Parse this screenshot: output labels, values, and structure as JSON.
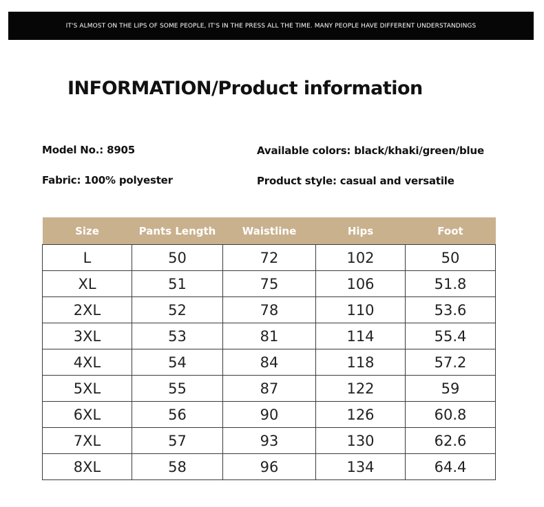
{
  "banner": "IT'S ALMOST ON THE LIPS OF SOME PEOPLE, IT'S IN THE PRESS ALL THE TIME. MANY PEOPLE HAVE DIFFERENT UNDERSTANDINGS",
  "title": "INFORMATION/Product information",
  "info": {
    "model": "Model No.: 8905",
    "colors": "Available colors: black/khaki/green/blue",
    "fabric": "Fabric: 100% polyester",
    "style": "Product style: casual and versatile"
  },
  "table": {
    "headers": [
      "Size",
      "Pants Length",
      "Waistline",
      "Hips",
      "Foot"
    ],
    "rows": [
      [
        "L",
        "50",
        "72",
        "102",
        "50"
      ],
      [
        "XL",
        "51",
        "75",
        "106",
        "51.8"
      ],
      [
        "2XL",
        "52",
        "78",
        "110",
        "53.6"
      ],
      [
        "3XL",
        "53",
        "81",
        "114",
        "55.4"
      ],
      [
        "4XL",
        "54",
        "84",
        "118",
        "57.2"
      ],
      [
        "5XL",
        "55",
        "87",
        "122",
        "59"
      ],
      [
        "6XL",
        "56",
        "90",
        "126",
        "60.8"
      ],
      [
        "7XL",
        "57",
        "93",
        "130",
        "62.6"
      ],
      [
        "8XL",
        "58",
        "96",
        "134",
        "64.4"
      ]
    ]
  },
  "colors": {
    "banner_bg": "#060606",
    "header_bg": "#c9b18e"
  }
}
